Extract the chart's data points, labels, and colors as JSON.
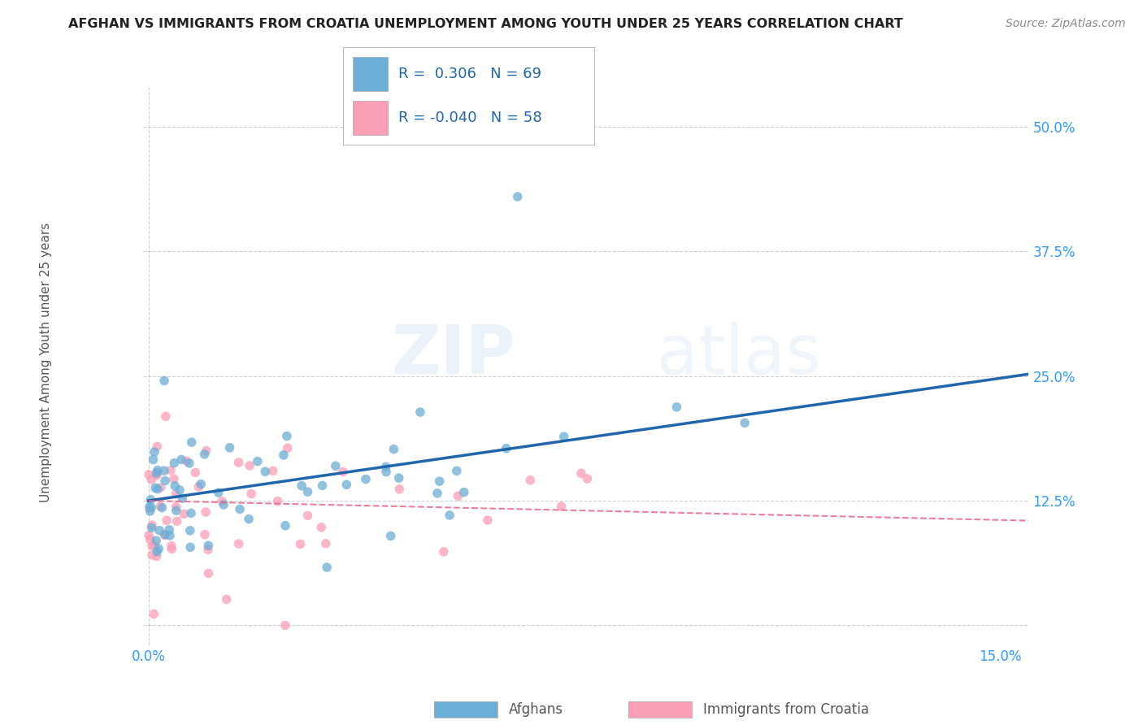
{
  "title": "AFGHAN VS IMMIGRANTS FROM CROATIA UNEMPLOYMENT AMONG YOUTH UNDER 25 YEARS CORRELATION CHART",
  "source": "Source: ZipAtlas.com",
  "ylabel": "Unemployment Among Youth under 25 years",
  "xlabel_afghans": "Afghans",
  "xlabel_croatia": "Immigrants from Croatia",
  "xlim": [
    -0.001,
    0.155
  ],
  "ylim": [
    -0.02,
    0.54
  ],
  "ytick_vals": [
    0.0,
    0.125,
    0.25,
    0.375,
    0.5
  ],
  "ytick_labels": [
    "",
    "12.5%",
    "25.0%",
    "37.5%",
    "50.0%"
  ],
  "xtick_vals": [
    0.0,
    0.15
  ],
  "xtick_labels": [
    "0.0%",
    "15.0%"
  ],
  "r_afghan": 0.306,
  "n_afghan": 69,
  "r_croatia": -0.04,
  "n_croatia": 58,
  "color_afghan": "#6baed6",
  "color_afghan_fill": "#9ecae1",
  "color_afghan_line": "#2166ac",
  "color_croatia": "#fa9fb5",
  "color_croatia_fill": "#fcc5d5",
  "color_croatia_line": "#e8698a",
  "background_color": "#ffffff",
  "grid_color": "#bbbbbb",
  "title_color": "#222222",
  "source_color": "#888888",
  "tick_color": "#3399ff",
  "ylabel_color": "#555555"
}
